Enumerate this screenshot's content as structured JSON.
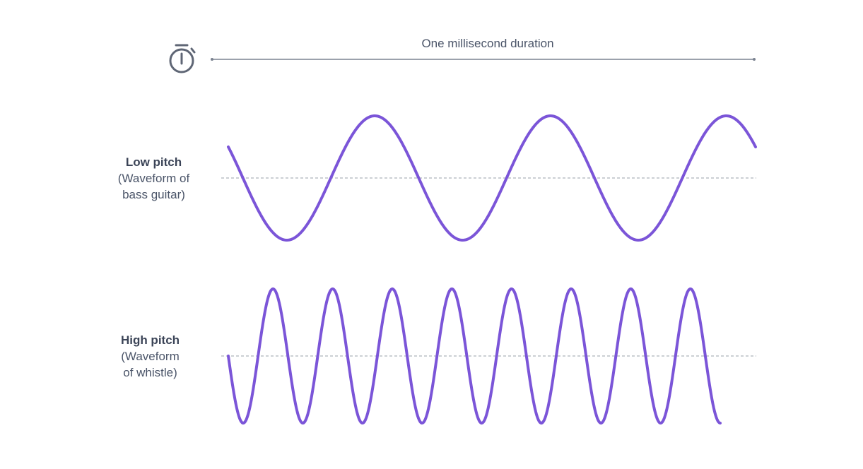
{
  "duration": {
    "label": "One millisecond duration"
  },
  "icons": {
    "timer": "stopwatch-icon"
  },
  "colors": {
    "wave": "#7b55d8",
    "text": "#4a5468",
    "axis": "#7a8290",
    "dashed": "#9aa0aa"
  },
  "waves": [
    {
      "title": "Low pitch",
      "subtitle_line1": "(Waveform of",
      "subtitle_line2": "bass guitar)",
      "cycles": 3,
      "start_phase_deg": 30
    },
    {
      "title": "High pitch",
      "subtitle_line1": "(Waveform",
      "subtitle_line2": "of whistle)",
      "cycles": 8,
      "start_phase_deg": 0
    }
  ]
}
